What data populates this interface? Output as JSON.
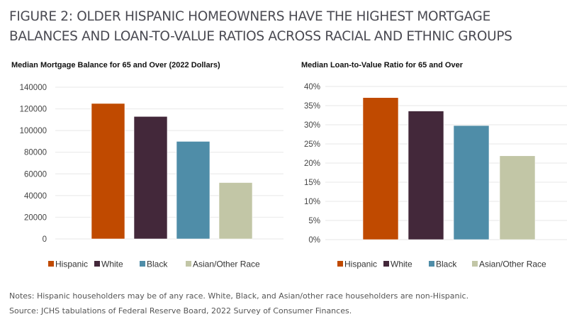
{
  "figure_title": "FIGURE 2: OLDER HISPANIC HOMEOWNERS HAVE THE HIGHEST MORTGAGE BALANCES AND LOAN-TO-VALUE RATIOS ACROSS RACIAL AND ETHNIC GROUPS",
  "notes": "Notes: Hispanic householders may be of any race. White, Black, and Asian/other race householders are non-Hispanic.",
  "source": "Source: JCHS tabulations of Federal Reserve Board, 2022 Survey of Consumer Finances.",
  "chart_data": [
    {
      "type": "bar",
      "title": "Median Mortgage Balance for 65 and Over (2022 Dollars)",
      "categories": [
        "Hispanic",
        "White",
        "Black",
        "Asian/Other Race"
      ],
      "values": [
        125000,
        113000,
        90000,
        52000
      ],
      "colors": [
        "#c04a00",
        "#43283a",
        "#4f8da8",
        "#c2c6a6"
      ],
      "ylim": [
        0,
        140000
      ],
      "yticks": [
        "0",
        "20000",
        "40000",
        "60000",
        "80000",
        "100000",
        "120000",
        "140000"
      ],
      "grid": true,
      "legend": "bottom"
    },
    {
      "type": "bar",
      "title": "Median Loan-to-Value Ratio for 65 and Over",
      "categories": [
        "Hispanic",
        "White",
        "Black",
        "Asian/Other Race"
      ],
      "values": [
        37.1,
        33.6,
        29.8,
        21.9
      ],
      "colors": [
        "#c04a00",
        "#43283a",
        "#4f8da8",
        "#c2c6a6"
      ],
      "ylim": [
        0,
        40
      ],
      "yticks": [
        "0%",
        "5%",
        "10%",
        "15%",
        "20%",
        "25%",
        "30%",
        "35%",
        "40%"
      ],
      "grid": true,
      "legend": "bottom"
    }
  ]
}
